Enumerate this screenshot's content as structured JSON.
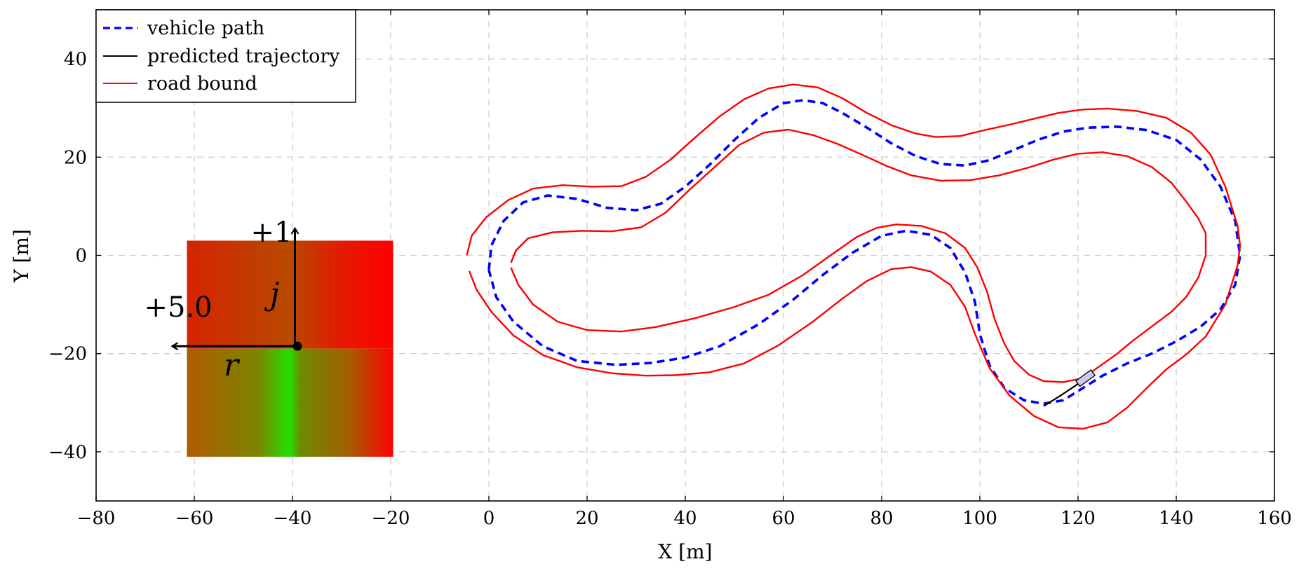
{
  "chart_data": {
    "type": "line",
    "title": "",
    "xlabel": "X [m]",
    "ylabel": "Y [m]",
    "xlim": [
      -80,
      160
    ],
    "ylim": [
      -50,
      50
    ],
    "grid": true,
    "legend_position": "top-left",
    "xticks": [
      -80,
      -60,
      -40,
      -20,
      0,
      20,
      40,
      60,
      80,
      100,
      120,
      140,
      160
    ],
    "yticks": [
      -40,
      -20,
      0,
      20,
      40
    ],
    "xtick_labels": [
      "−80",
      "−60",
      "−40",
      "−20",
      "0",
      "20",
      "40",
      "60",
      "80",
      "100",
      "120",
      "140",
      "160"
    ],
    "ytick_labels": [
      "−40",
      "−20",
      "0",
      "20",
      "40"
    ],
    "series": [
      {
        "name": "vehicle path",
        "color": "#0000ff",
        "style": "dashed",
        "points": [
          [
            0,
            -3
          ],
          [
            0.5,
            2
          ],
          [
            3,
            7
          ],
          [
            7,
            10.8
          ],
          [
            12,
            12.2
          ],
          [
            18,
            11.5
          ],
          [
            24,
            9.7
          ],
          [
            30,
            9.2
          ],
          [
            35,
            10.5
          ],
          [
            40,
            14
          ],
          [
            45,
            18.5
          ],
          [
            50,
            23.5
          ],
          [
            55,
            28
          ],
          [
            60,
            31
          ],
          [
            64,
            31.6
          ],
          [
            68,
            31
          ],
          [
            72,
            29
          ],
          [
            77,
            26
          ],
          [
            82,
            22.8
          ],
          [
            87,
            20.2
          ],
          [
            92,
            18.6
          ],
          [
            97,
            18.3
          ],
          [
            102,
            19.4
          ],
          [
            107,
            21.5
          ],
          [
            112,
            23.6
          ],
          [
            117,
            25.2
          ],
          [
            122,
            26
          ],
          [
            128,
            26.2
          ],
          [
            134,
            25.5
          ],
          [
            140,
            23.5
          ],
          [
            145,
            19.5
          ],
          [
            149,
            14
          ],
          [
            152,
            7
          ],
          [
            153,
            0
          ],
          [
            152,
            -6
          ],
          [
            149,
            -11
          ],
          [
            145,
            -14.5
          ],
          [
            140,
            -17.5
          ],
          [
            135,
            -20
          ],
          [
            130,
            -22
          ],
          [
            125,
            -24.5
          ],
          [
            121,
            -27
          ],
          [
            117,
            -29.5
          ],
          [
            113,
            -30.2
          ],
          [
            109,
            -29.5
          ],
          [
            105,
            -27
          ],
          [
            102,
            -22.5
          ],
          [
            100,
            -16
          ],
          [
            99,
            -9.5
          ],
          [
            97,
            -3.5
          ],
          [
            94,
            1.5
          ],
          [
            90,
            4.2
          ],
          [
            85,
            5
          ],
          [
            80,
            4
          ],
          [
            74,
            0.5
          ],
          [
            68,
            -4
          ],
          [
            62,
            -9
          ],
          [
            55,
            -14
          ],
          [
            47,
            -18.5
          ],
          [
            40,
            -20.8
          ],
          [
            33,
            -21.9
          ],
          [
            26,
            -22.3
          ],
          [
            18,
            -21.5
          ],
          [
            11,
            -18.5
          ],
          [
            5,
            -13.5
          ],
          [
            1.5,
            -8.5
          ],
          [
            0,
            -3
          ]
        ]
      },
      {
        "name": "road bound",
        "color": "#ff0000",
        "style": "solid",
        "points": [
          [
            -4.5,
            0
          ],
          [
            -3.5,
            4
          ],
          [
            -0.5,
            7.8
          ],
          [
            4,
            11.3
          ],
          [
            9,
            13.6
          ],
          [
            15,
            14.3
          ],
          [
            21,
            14
          ],
          [
            27,
            14.1
          ],
          [
            32,
            16
          ],
          [
            37,
            19.5
          ],
          [
            42,
            24
          ],
          [
            47,
            28.3
          ],
          [
            52,
            31.8
          ],
          [
            57,
            34
          ],
          [
            62,
            34.8
          ],
          [
            67,
            34.2
          ],
          [
            72,
            32
          ],
          [
            77,
            29
          ],
          [
            82,
            26.5
          ],
          [
            87,
            24.8
          ],
          [
            91,
            24.1
          ],
          [
            96,
            24.3
          ],
          [
            101,
            25.5
          ],
          [
            106,
            26.6
          ],
          [
            111,
            27.8
          ],
          [
            116,
            29
          ],
          [
            121,
            29.7
          ],
          [
            126,
            29.9
          ],
          [
            132,
            29.4
          ],
          [
            138,
            28
          ],
          [
            143,
            25
          ],
          [
            147,
            20.5
          ],
          [
            150,
            14
          ],
          [
            152.5,
            6
          ],
          [
            153,
            2
          ],
          [
            152.5,
            -2
          ],
          [
            150,
            -10
          ],
          [
            146,
            -16.5
          ],
          [
            142,
            -20.2
          ],
          [
            138,
            -23.2
          ],
          [
            134,
            -27
          ],
          [
            130,
            -31
          ],
          [
            126,
            -34
          ],
          [
            121,
            -35.3
          ],
          [
            116,
            -35
          ],
          [
            111,
            -32.7
          ],
          [
            106,
            -28.5
          ],
          [
            102,
            -23
          ],
          [
            99,
            -16
          ],
          [
            97,
            -10.5
          ],
          [
            94,
            -6
          ],
          [
            90,
            -3.3
          ],
          [
            86,
            -2.4
          ],
          [
            82,
            -2.8
          ],
          [
            77,
            -5.2
          ],
          [
            72,
            -8.8
          ],
          [
            66,
            -13.5
          ],
          [
            59,
            -18.3
          ],
          [
            52,
            -22
          ],
          [
            45,
            -23.8
          ],
          [
            38,
            -24.4
          ],
          [
            32,
            -24.5
          ],
          [
            25,
            -24
          ],
          [
            18,
            -22.8
          ],
          [
            11,
            -20.3
          ],
          [
            5,
            -16.3
          ],
          [
            0.5,
            -11.5
          ],
          [
            -2.5,
            -7
          ],
          [
            -4,
            -3.2
          ]
        ]
      },
      {
        "name": "road bound",
        "color": "#ff0000",
        "style": "solid",
        "points": [
          [
            4.5,
            -1.5
          ],
          [
            5.5,
            1
          ],
          [
            8,
            3.5
          ],
          [
            13,
            4.7
          ],
          [
            19,
            5
          ],
          [
            25,
            4.9
          ],
          [
            31,
            5.7
          ],
          [
            36,
            8.7
          ],
          [
            41,
            13.5
          ],
          [
            46,
            18
          ],
          [
            51,
            22.5
          ],
          [
            56,
            25
          ],
          [
            61,
            25.6
          ],
          [
            66,
            24.5
          ],
          [
            71,
            22.7
          ],
          [
            76,
            20.5
          ],
          [
            81,
            18.2
          ],
          [
            86,
            16.3
          ],
          [
            92,
            15.2
          ],
          [
            98,
            15.3
          ],
          [
            104,
            16.3
          ],
          [
            110,
            17.9
          ],
          [
            115,
            19.5
          ],
          [
            120,
            20.7
          ],
          [
            125,
            21
          ],
          [
            130,
            20.2
          ],
          [
            135,
            18
          ],
          [
            139,
            14.8
          ],
          [
            142,
            11
          ],
          [
            144.5,
            7.5
          ],
          [
            146,
            4.5
          ],
          [
            146,
            0
          ],
          [
            144.5,
            -4.5
          ],
          [
            142,
            -8.5
          ],
          [
            139,
            -11.5
          ],
          [
            135,
            -14.5
          ],
          [
            131,
            -17.5
          ],
          [
            128,
            -20
          ],
          [
            124.5,
            -22.5
          ],
          [
            121,
            -25
          ],
          [
            117,
            -25.8
          ],
          [
            113,
            -25.6
          ],
          [
            110,
            -24.3
          ],
          [
            107,
            -21.5
          ],
          [
            105,
            -18
          ],
          [
            103,
            -13
          ],
          [
            101.5,
            -7.5
          ],
          [
            99.5,
            -2.5
          ],
          [
            97,
            1.5
          ],
          [
            93,
            4.5
          ],
          [
            88,
            6
          ],
          [
            83,
            6.3
          ],
          [
            79,
            5.6
          ],
          [
            75,
            3.8
          ],
          [
            70,
            0.3
          ],
          [
            64,
            -4
          ],
          [
            57,
            -8
          ],
          [
            50,
            -10.5
          ],
          [
            42,
            -12.8
          ],
          [
            34,
            -14.6
          ],
          [
            27,
            -15.5
          ],
          [
            20,
            -15.2
          ],
          [
            14,
            -13.5
          ],
          [
            9,
            -10
          ],
          [
            6,
            -6
          ],
          [
            4.5,
            -2.5
          ]
        ]
      },
      {
        "name": "predicted trajectory",
        "color": "#000000",
        "style": "solid",
        "points": [
          [
            113,
            -30.7
          ],
          [
            116.5,
            -28.5
          ],
          [
            119.5,
            -26.5
          ],
          [
            122,
            -24.6
          ]
        ]
      }
    ],
    "vehicle": {
      "x": 121.5,
      "y": -25,
      "heading_deg": 36,
      "length": 3.8,
      "width": 1.4,
      "fill": "#c8c8f0"
    },
    "heatmap_panel": {
      "x": [
        -61.5,
        -19.5
      ],
      "y": [
        -41,
        3
      ],
      "split_y": -19,
      "upper_color": "#e41a00",
      "upper_mid_color": "#b84a00",
      "lower_color": "#7e8000",
      "lower_peak_color": "#22e000",
      "edge_color": "#ff0000",
      "peak_x": -39.5,
      "origin": [
        -39.5,
        -18.5
      ]
    },
    "annotations": {
      "up_label": "+1",
      "left_label": "+5.0",
      "j_label": "j",
      "r_label": "r"
    }
  }
}
